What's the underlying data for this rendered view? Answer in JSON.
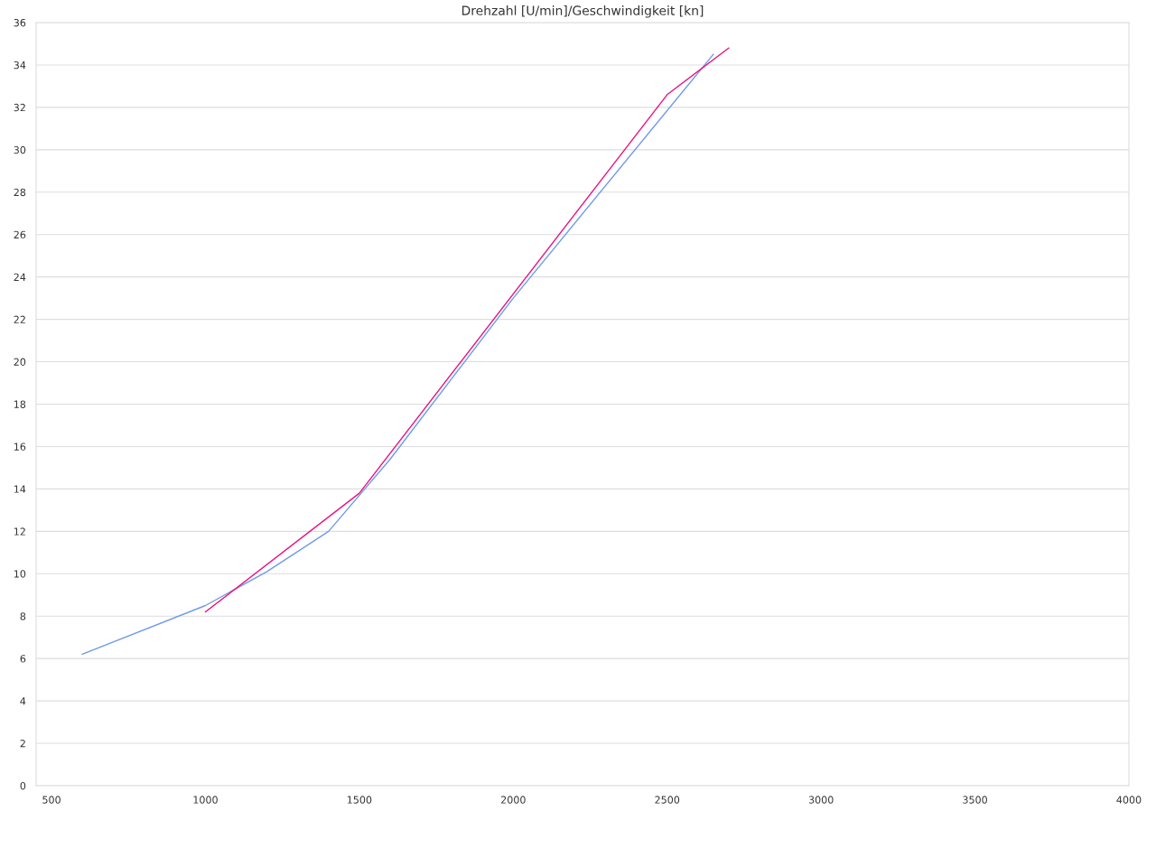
{
  "chart_data": {
    "type": "line",
    "title": "Drehzahl [U/min]/Geschwindigkeit [kn]",
    "series": [
      {
        "color": "#6f9be8",
        "x": [
          600,
          1000,
          1200,
          1400,
          1600,
          2000,
          2650
        ],
        "values": [
          6.2,
          8.5,
          10.1,
          12.0,
          15.4,
          23.0,
          34.5
        ]
      },
      {
        "color": "#e8137f",
        "x": [
          1000,
          1500,
          2500,
          2700
        ],
        "values": [
          8.2,
          13.8,
          32.6,
          34.8
        ]
      }
    ],
    "xlim": [
      450,
      4000
    ],
    "xticks": [
      500,
      1000,
      1500,
      2000,
      2500,
      3000,
      3500,
      4000
    ],
    "ylim": [
      0,
      36
    ],
    "yticks": [
      0,
      2,
      4,
      6,
      8,
      10,
      12,
      14,
      16,
      18,
      20,
      22,
      24,
      26,
      28,
      30,
      32,
      34,
      36
    ],
    "grid": "y",
    "marker": "none",
    "line_style": "solid"
  }
}
